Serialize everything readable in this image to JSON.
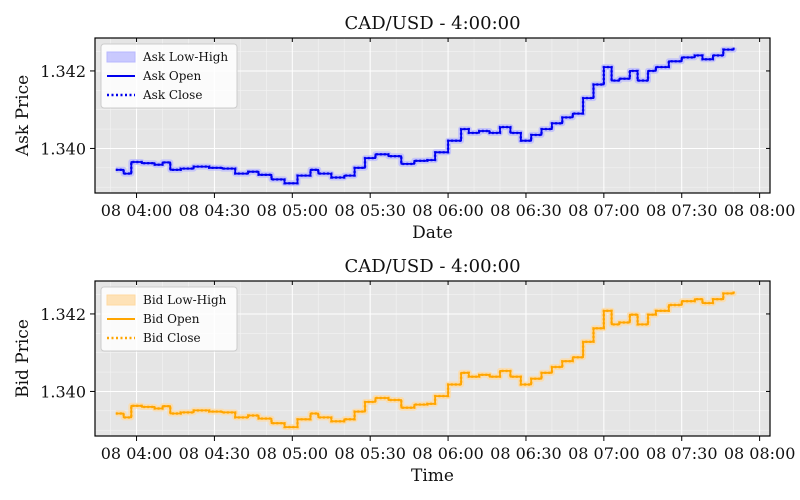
{
  "chart_data": [
    {
      "type": "line",
      "title": "CAD/USD - 4:00:00",
      "xlabel": "Date",
      "ylabel": "Ask Price",
      "xlim": [
        "03:44",
        "08:04"
      ],
      "ylim": [
        1.33885,
        1.34285
      ],
      "x_ticks": [
        "08 04:00",
        "08 04:30",
        "08 05:00",
        "08 05:30",
        "08 06:00",
        "08 06:30",
        "08 07:00",
        "08 07:30",
        "08 08:00"
      ],
      "y_ticks": [
        1.34,
        1.342
      ],
      "y_tick_labels": [
        "1.340",
        "1.342"
      ],
      "grid": true,
      "legend_position": "top-left",
      "colors": {
        "band": "#b8b8ff",
        "line": "#0000ee"
      },
      "series": [
        {
          "name": "Ask Low-High",
          "kind": "band"
        },
        {
          "name": "Ask Open",
          "kind": "line"
        },
        {
          "name": "Ask Close",
          "kind": "dotted"
        }
      ],
      "points": [
        [
          "03:52",
          1.33945
        ],
        [
          "03:55",
          1.33935
        ],
        [
          "03:58",
          1.33965
        ],
        [
          "04:02",
          1.33962
        ],
        [
          "04:07",
          1.33958
        ],
        [
          "04:10",
          1.33964
        ],
        [
          "04:13",
          1.33945
        ],
        [
          "04:17",
          1.33948
        ],
        [
          "04:22",
          1.33953
        ],
        [
          "04:28",
          1.3395
        ],
        [
          "04:33",
          1.33948
        ],
        [
          "04:38",
          1.33935
        ],
        [
          "04:43",
          1.3394
        ],
        [
          "04:47",
          1.33932
        ],
        [
          "04:52",
          1.3392
        ],
        [
          "04:57",
          1.3391
        ],
        [
          "05:02",
          1.3393
        ],
        [
          "05:07",
          1.33945
        ],
        [
          "05:10",
          1.33935
        ],
        [
          "05:15",
          1.33925
        ],
        [
          "05:20",
          1.3393
        ],
        [
          "05:24",
          1.3395
        ],
        [
          "05:28",
          1.33975
        ],
        [
          "05:32",
          1.33985
        ],
        [
          "05:37",
          1.3398
        ],
        [
          "05:42",
          1.3396
        ],
        [
          "05:47",
          1.33968
        ],
        [
          "05:52",
          1.3397
        ],
        [
          "05:55",
          1.3399
        ],
        [
          "06:00",
          1.3402
        ],
        [
          "06:05",
          1.3405
        ],
        [
          "06:08",
          1.3404
        ],
        [
          "06:12",
          1.34045
        ],
        [
          "06:16",
          1.3404
        ],
        [
          "06:20",
          1.34055
        ],
        [
          "06:24",
          1.3404
        ],
        [
          "06:28",
          1.3402
        ],
        [
          "06:32",
          1.34035
        ],
        [
          "06:36",
          1.3405
        ],
        [
          "06:40",
          1.34065
        ],
        [
          "06:44",
          1.3408
        ],
        [
          "06:48",
          1.3409
        ],
        [
          "06:52",
          1.3413
        ],
        [
          "06:56",
          1.34165
        ],
        [
          "07:00",
          1.3421
        ],
        [
          "07:03",
          1.34175
        ],
        [
          "07:06",
          1.3418
        ],
        [
          "07:10",
          1.342
        ],
        [
          "07:13",
          1.34175
        ],
        [
          "07:17",
          1.342
        ],
        [
          "07:20",
          1.3421
        ],
        [
          "07:25",
          1.34225
        ],
        [
          "07:30",
          1.34235
        ],
        [
          "07:35",
          1.3424
        ],
        [
          "07:38",
          1.3423
        ],
        [
          "07:42",
          1.3424
        ],
        [
          "07:46",
          1.34255
        ],
        [
          "07:50",
          1.3426
        ]
      ]
    },
    {
      "type": "line",
      "title": "CAD/USD - 4:00:00",
      "xlabel": "Time",
      "ylabel": "Bid Price",
      "xlim": [
        "03:44",
        "08:04"
      ],
      "ylim": [
        1.33885,
        1.34285
      ],
      "x_ticks": [
        "08 04:00",
        "08 04:30",
        "08 05:00",
        "08 05:30",
        "08 06:00",
        "08 06:30",
        "08 07:00",
        "08 07:30",
        "08 08:00"
      ],
      "y_ticks": [
        1.34,
        1.342
      ],
      "y_tick_labels": [
        "1.340",
        "1.342"
      ],
      "grid": true,
      "legend_position": "top-left",
      "colors": {
        "band": "#ffd9a0",
        "line": "#ffa500"
      },
      "series": [
        {
          "name": "Bid Low-High",
          "kind": "band"
        },
        {
          "name": "Bid Open",
          "kind": "line"
        },
        {
          "name": "Bid Close",
          "kind": "dotted"
        }
      ],
      "points": [
        [
          "03:52",
          1.33943
        ],
        [
          "03:55",
          1.33933
        ],
        [
          "03:58",
          1.33963
        ],
        [
          "04:02",
          1.3396
        ],
        [
          "04:07",
          1.33956
        ],
        [
          "04:10",
          1.33962
        ],
        [
          "04:13",
          1.33943
        ],
        [
          "04:17",
          1.33946
        ],
        [
          "04:22",
          1.33951
        ],
        [
          "04:28",
          1.33948
        ],
        [
          "04:33",
          1.33946
        ],
        [
          "04:38",
          1.33933
        ],
        [
          "04:43",
          1.33938
        ],
        [
          "04:47",
          1.3393
        ],
        [
          "04:52",
          1.33918
        ],
        [
          "04:57",
          1.33908
        ],
        [
          "05:02",
          1.33928
        ],
        [
          "05:07",
          1.33943
        ],
        [
          "05:10",
          1.33933
        ],
        [
          "05:15",
          1.33923
        ],
        [
          "05:20",
          1.33928
        ],
        [
          "05:24",
          1.33948
        ],
        [
          "05:28",
          1.33973
        ],
        [
          "05:32",
          1.33983
        ],
        [
          "05:37",
          1.33978
        ],
        [
          "05:42",
          1.33958
        ],
        [
          "05:47",
          1.33966
        ],
        [
          "05:52",
          1.33968
        ],
        [
          "05:55",
          1.33988
        ],
        [
          "06:00",
          1.34018
        ],
        [
          "06:05",
          1.34048
        ],
        [
          "06:08",
          1.34038
        ],
        [
          "06:12",
          1.34043
        ],
        [
          "06:16",
          1.34038
        ],
        [
          "06:20",
          1.34053
        ],
        [
          "06:24",
          1.34038
        ],
        [
          "06:28",
          1.34018
        ],
        [
          "06:32",
          1.34033
        ],
        [
          "06:36",
          1.34048
        ],
        [
          "06:40",
          1.34063
        ],
        [
          "06:44",
          1.34078
        ],
        [
          "06:48",
          1.34088
        ],
        [
          "06:52",
          1.34128
        ],
        [
          "06:56",
          1.34163
        ],
        [
          "07:00",
          1.34208
        ],
        [
          "07:03",
          1.34173
        ],
        [
          "07:06",
          1.34178
        ],
        [
          "07:10",
          1.34198
        ],
        [
          "07:13",
          1.34173
        ],
        [
          "07:17",
          1.34198
        ],
        [
          "07:20",
          1.34208
        ],
        [
          "07:25",
          1.34223
        ],
        [
          "07:30",
          1.34233
        ],
        [
          "07:35",
          1.34238
        ],
        [
          "07:38",
          1.34228
        ],
        [
          "07:42",
          1.34238
        ],
        [
          "07:46",
          1.34253
        ],
        [
          "07:50",
          1.34258
        ]
      ]
    }
  ]
}
